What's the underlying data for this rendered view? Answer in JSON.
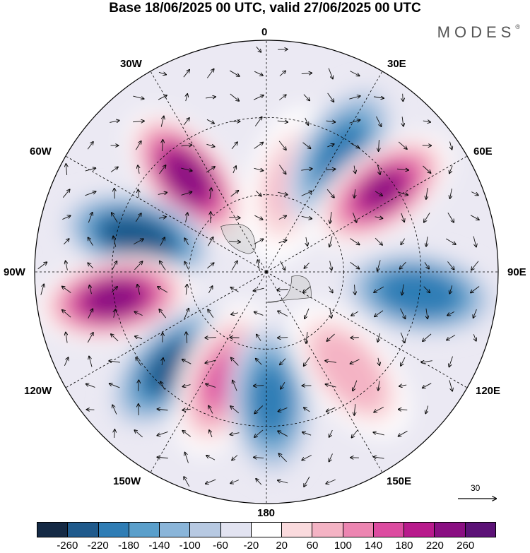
{
  "title": "Base 18/06/2025 00 UTC, valid 27/06/2025 00 UTC",
  "brand": "MODES",
  "brand_mark": "®",
  "map_labels": {
    "lon_0": "0",
    "lon_30e": "30E",
    "lon_60e": "60E",
    "lon_90e": "90E",
    "lon_120e": "120E",
    "lon_150e": "150E",
    "lon_180": "180",
    "lon_150w": "150W",
    "lon_120w": "120W",
    "lon_90w": "90W",
    "lon_60w": "60W",
    "lon_30w": "30W"
  },
  "reference_vector": "30",
  "colorbar": {
    "colors": [
      "#152a45",
      "#1f5a8c",
      "#2f7db5",
      "#5a9fcb",
      "#8ab5d9",
      "#b7c9e2",
      "#e2e3f1",
      "#ffffff",
      "#fadadd",
      "#f4b3c4",
      "#ec85b1",
      "#dc4ba0",
      "#b81a8c",
      "#8a0f82",
      "#5c1277"
    ],
    "ticks": [
      "-260",
      "-220",
      "-180",
      "-140",
      "-100",
      "-60",
      "-20",
      "20",
      "60",
      "100",
      "140",
      "180",
      "220",
      "260"
    ]
  },
  "anomaly_centers": [
    {
      "lon": -40,
      "lat": 42,
      "value": 260
    },
    {
      "lon": -75,
      "lat": 38,
      "value": -250
    },
    {
      "lon": -100,
      "lat": 30,
      "value": 260
    },
    {
      "lon": -135,
      "lat": 38,
      "value": -220
    },
    {
      "lon": -158,
      "lat": 45,
      "value": 160
    },
    {
      "lon": 178,
      "lat": 40,
      "value": -200
    },
    {
      "lon": 15,
      "lat": 55,
      "value": 80
    },
    {
      "lon": 32,
      "lat": 36,
      "value": -200
    },
    {
      "lon": 55,
      "lat": 35,
      "value": 240
    },
    {
      "lon": 98,
      "lat": 30,
      "value": -210
    },
    {
      "lon": 140,
      "lat": 40,
      "value": 90
    }
  ]
}
